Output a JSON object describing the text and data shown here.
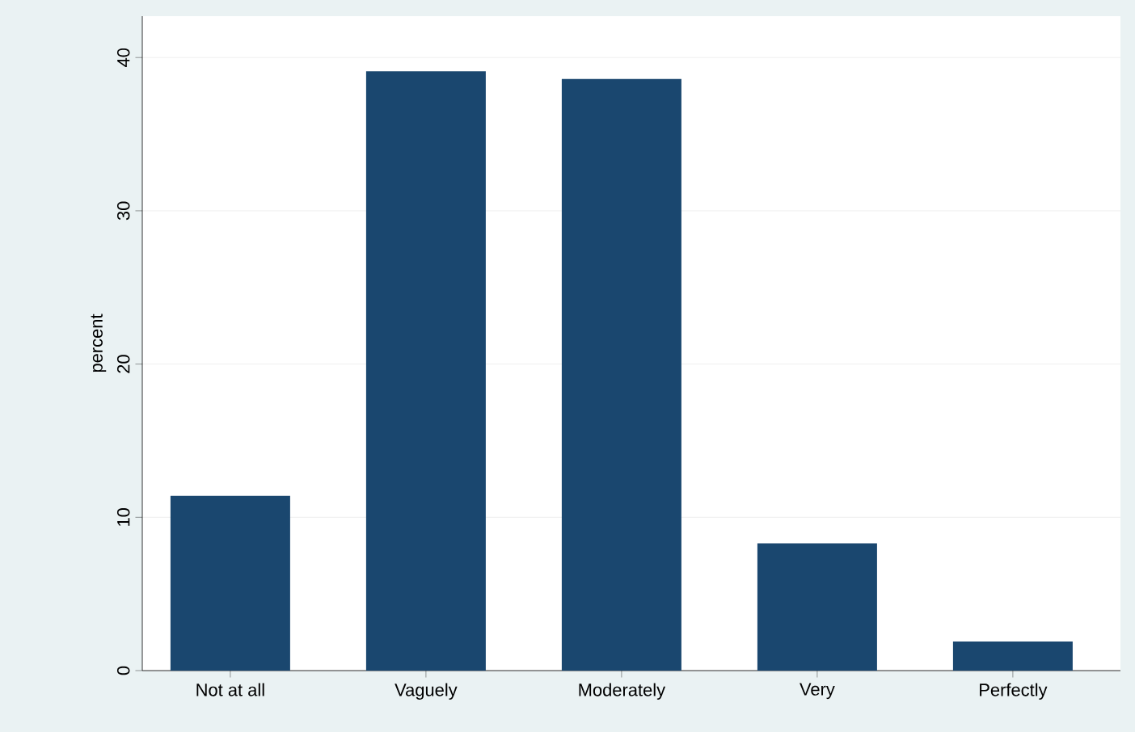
{
  "chart_data": {
    "type": "bar",
    "ylabel": "percent",
    "categories": [
      "Not at all",
      "Vaguely",
      "Moderately",
      "Very",
      "Perfectly"
    ],
    "values": [
      11.4,
      39.1,
      38.6,
      8.3,
      1.9
    ],
    "color": "#1a476f",
    "ylim": [
      0,
      42.7
    ],
    "yticks": [
      0,
      10,
      20,
      30,
      40
    ],
    "grid": "y"
  }
}
